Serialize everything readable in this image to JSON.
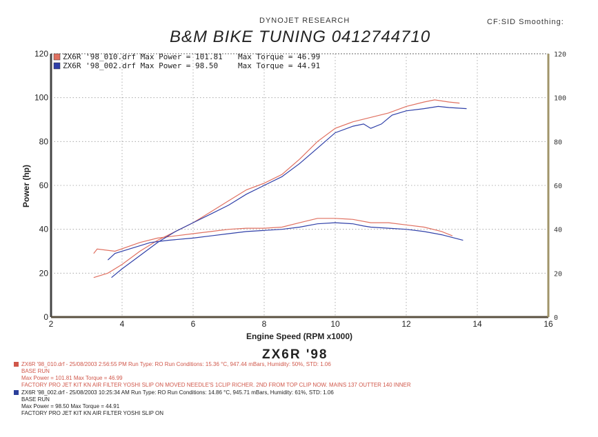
{
  "header": {
    "top_label": "DYNOJET RESEARCH",
    "right_label": "CF:SID  Smoothing:",
    "shop_title": "B&M BIKE TUNING    0412744710"
  },
  "chart_data": {
    "type": "line",
    "title": "ZX6R '98",
    "xlabel": "Engine Speed (RPM x1000)",
    "ylabel": "Power (hp)",
    "y2label": "",
    "xlim": [
      2,
      16
    ],
    "ylim": [
      0,
      120
    ],
    "y2lim": [
      0,
      120
    ],
    "x_ticks": [
      "2",
      "4",
      "6",
      "8",
      "10",
      "12",
      "14",
      "16"
    ],
    "y_ticks": [
      "0",
      "20",
      "40",
      "60",
      "80",
      "100",
      "120"
    ],
    "y2_ticks": [
      "0",
      "20",
      "40",
      "60",
      "80",
      "100",
      "120"
    ],
    "grid": true,
    "legend_position": "top-left",
    "series": [
      {
        "name": "ZX6R '98_010.drf Max Power = 101.81",
        "legend_extra": "Max Torque = 46.99",
        "color": "#e07060",
        "power": [
          [
            3.2,
            18
          ],
          [
            3.6,
            20
          ],
          [
            4.0,
            24
          ],
          [
            4.5,
            30
          ],
          [
            5.0,
            35
          ],
          [
            5.5,
            39
          ],
          [
            6.0,
            43
          ],
          [
            6.5,
            48
          ],
          [
            7.0,
            53
          ],
          [
            7.5,
            58
          ],
          [
            8.0,
            61
          ],
          [
            8.5,
            65
          ],
          [
            9.0,
            72
          ],
          [
            9.5,
            80
          ],
          [
            10.0,
            86
          ],
          [
            10.5,
            89
          ],
          [
            11.0,
            91
          ],
          [
            11.5,
            93
          ],
          [
            12.0,
            96
          ],
          [
            12.5,
            98
          ],
          [
            12.8,
            99
          ],
          [
            13.2,
            98
          ],
          [
            13.5,
            97.5
          ]
        ],
        "torque": [
          [
            3.2,
            29
          ],
          [
            3.3,
            31
          ],
          [
            3.8,
            30
          ],
          [
            4.5,
            34
          ],
          [
            5.0,
            36
          ],
          [
            5.5,
            37
          ],
          [
            6.0,
            38
          ],
          [
            6.5,
            39
          ],
          [
            7.0,
            40
          ],
          [
            7.5,
            40.5
          ],
          [
            8.0,
            40.5
          ],
          [
            8.5,
            41
          ],
          [
            9.0,
            43
          ],
          [
            9.5,
            45
          ],
          [
            10.0,
            45
          ],
          [
            10.5,
            44.5
          ],
          [
            11.0,
            43
          ],
          [
            11.5,
            43
          ],
          [
            12.0,
            42
          ],
          [
            12.5,
            41
          ],
          [
            13.0,
            39
          ],
          [
            13.3,
            37
          ]
        ]
      },
      {
        "name": "ZX6R '98_002.drf Max Power = 98.50",
        "legend_extra": "Max Torque = 44.91",
        "color": "#2e3fa8",
        "power": [
          [
            3.7,
            18
          ],
          [
            4.0,
            22
          ],
          [
            4.5,
            28
          ],
          [
            5.0,
            34
          ],
          [
            5.5,
            39
          ],
          [
            6.0,
            43
          ],
          [
            6.5,
            47
          ],
          [
            7.0,
            51
          ],
          [
            7.5,
            56
          ],
          [
            8.0,
            60
          ],
          [
            8.5,
            64
          ],
          [
            9.0,
            70
          ],
          [
            9.5,
            77
          ],
          [
            10.0,
            84
          ],
          [
            10.5,
            87
          ],
          [
            10.8,
            88
          ],
          [
            11.0,
            86
          ],
          [
            11.3,
            88
          ],
          [
            11.6,
            92
          ],
          [
            12.0,
            94
          ],
          [
            12.5,
            95
          ],
          [
            12.9,
            96
          ],
          [
            13.2,
            95.5
          ],
          [
            13.7,
            95
          ]
        ],
        "torque": [
          [
            3.6,
            26
          ],
          [
            3.8,
            29
          ],
          [
            4.2,
            31
          ],
          [
            4.8,
            34
          ],
          [
            5.3,
            35
          ],
          [
            6.0,
            36
          ],
          [
            6.5,
            37
          ],
          [
            7.0,
            38
          ],
          [
            7.5,
            39
          ],
          [
            8.0,
            39.5
          ],
          [
            8.5,
            40
          ],
          [
            9.0,
            41
          ],
          [
            9.5,
            42.5
          ],
          [
            10.0,
            43
          ],
          [
            10.5,
            42.5
          ],
          [
            10.8,
            41.5
          ],
          [
            11.0,
            41
          ],
          [
            11.5,
            40.5
          ],
          [
            12.0,
            40
          ],
          [
            12.5,
            39
          ],
          [
            13.0,
            37.5
          ],
          [
            13.6,
            35
          ]
        ]
      }
    ]
  },
  "runs": [
    {
      "color": "#d0574a",
      "line1": "ZX6R '98_010.drf - 25/08/2003 2:56:55 PM   Run Type: RO  Run Conditions: 15.36 °C, 947.44 mBars,  Humidity:  50%,  STD: 1.06",
      "line2": "BASE RUN",
      "line3": "Max Power = 101.81  Max Torque = 46.99",
      "line4": "FACTORY PRO JET KIT KN AIR FILTER YOSHI SLIP ON MOVED NEEDLE'S 1CLIP RICHER. 2ND FROM TOP CLIP NOW. MAINS 137 OUTTER 140 INNER"
    },
    {
      "color": "#2b3f9a",
      "line1": "ZX6R '98_002.drf - 25/08/2003 10:25:34 AM  Run Type: RO  Run Conditions: 14.86 °C, 945.71 mBars,  Humidity:  61%,  STD: 1.06",
      "line2": "BASE RUN",
      "line3": "Max Power = 98.50  Max Torque = 44.91",
      "line4": "FACTORY PRO JET KIT KN AIR FILTER YOSHI SLIP ON"
    }
  ]
}
